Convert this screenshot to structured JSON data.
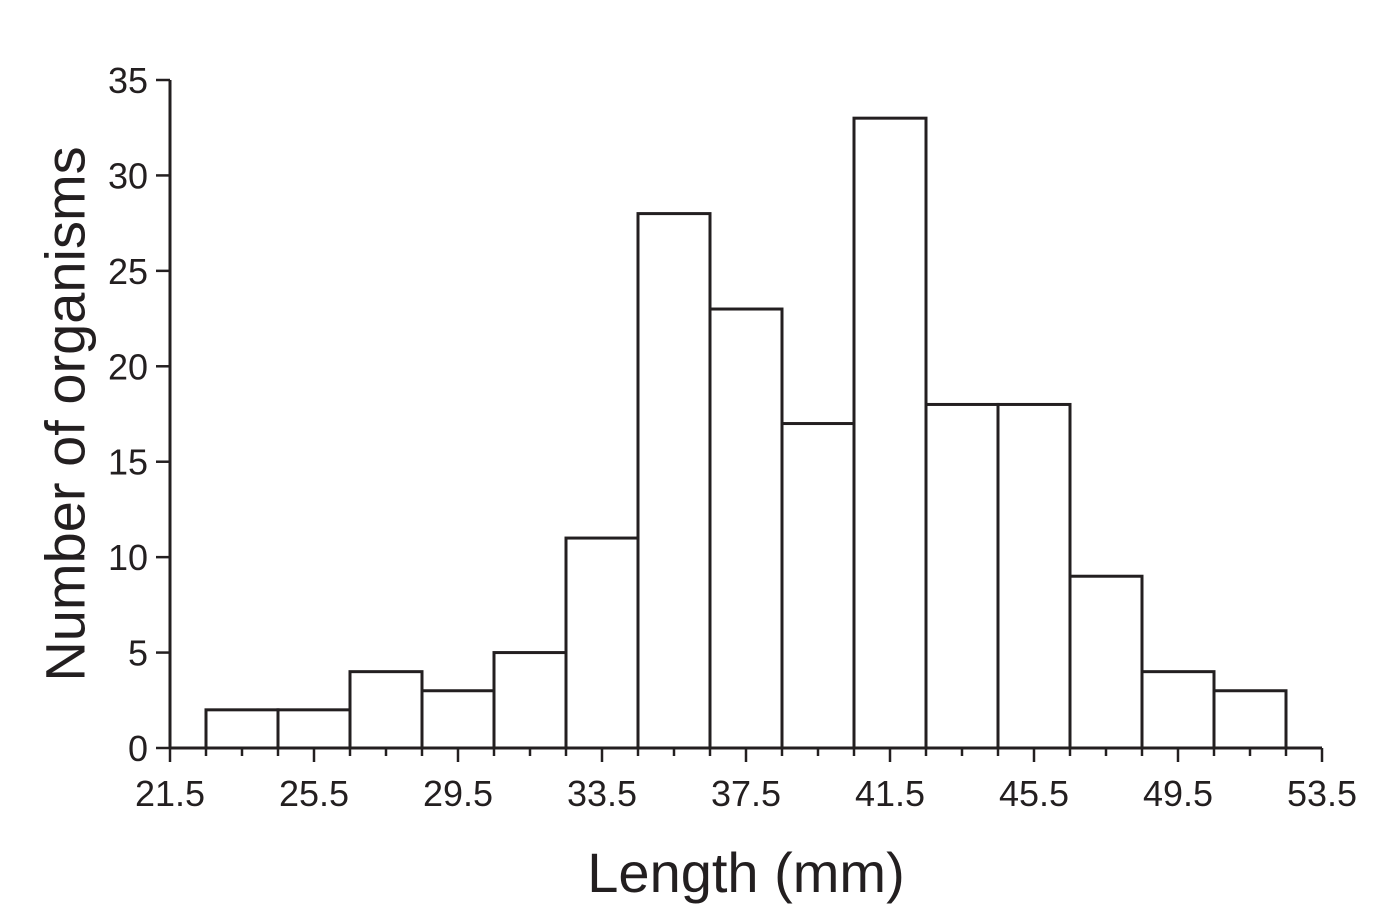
{
  "chart_data": {
    "type": "bar",
    "title": "",
    "xlabel": "Length (mm)",
    "ylabel": "Number of organisms",
    "xlim": [
      21.5,
      53.5
    ],
    "ylim": [
      0,
      35
    ],
    "bin_width": 2,
    "x_ticks": [
      "21.5",
      "25.5",
      "29.5",
      "33.5",
      "37.5",
      "41.5",
      "45.5",
      "49.5",
      "53.5"
    ],
    "y_ticks": [
      "0",
      "5",
      "10",
      "15",
      "20",
      "25",
      "30",
      "35"
    ],
    "bins": [
      {
        "start": 22.5,
        "end": 24.5,
        "count": 2
      },
      {
        "start": 24.5,
        "end": 26.5,
        "count": 2
      },
      {
        "start": 26.5,
        "end": 28.5,
        "count": 4
      },
      {
        "start": 28.5,
        "end": 30.5,
        "count": 3
      },
      {
        "start": 30.5,
        "end": 32.5,
        "count": 5
      },
      {
        "start": 32.5,
        "end": 34.5,
        "count": 11
      },
      {
        "start": 34.5,
        "end": 36.5,
        "count": 28
      },
      {
        "start": 36.5,
        "end": 38.5,
        "count": 23
      },
      {
        "start": 38.5,
        "end": 40.5,
        "count": 17
      },
      {
        "start": 40.5,
        "end": 42.5,
        "count": 33
      },
      {
        "start": 42.5,
        "end": 44.5,
        "count": 18
      },
      {
        "start": 44.5,
        "end": 46.5,
        "count": 18
      },
      {
        "start": 46.5,
        "end": 48.5,
        "count": 9
      },
      {
        "start": 48.5,
        "end": 50.5,
        "count": 4
      },
      {
        "start": 50.5,
        "end": 52.5,
        "count": 3
      }
    ],
    "grid": false,
    "legend": "none"
  }
}
